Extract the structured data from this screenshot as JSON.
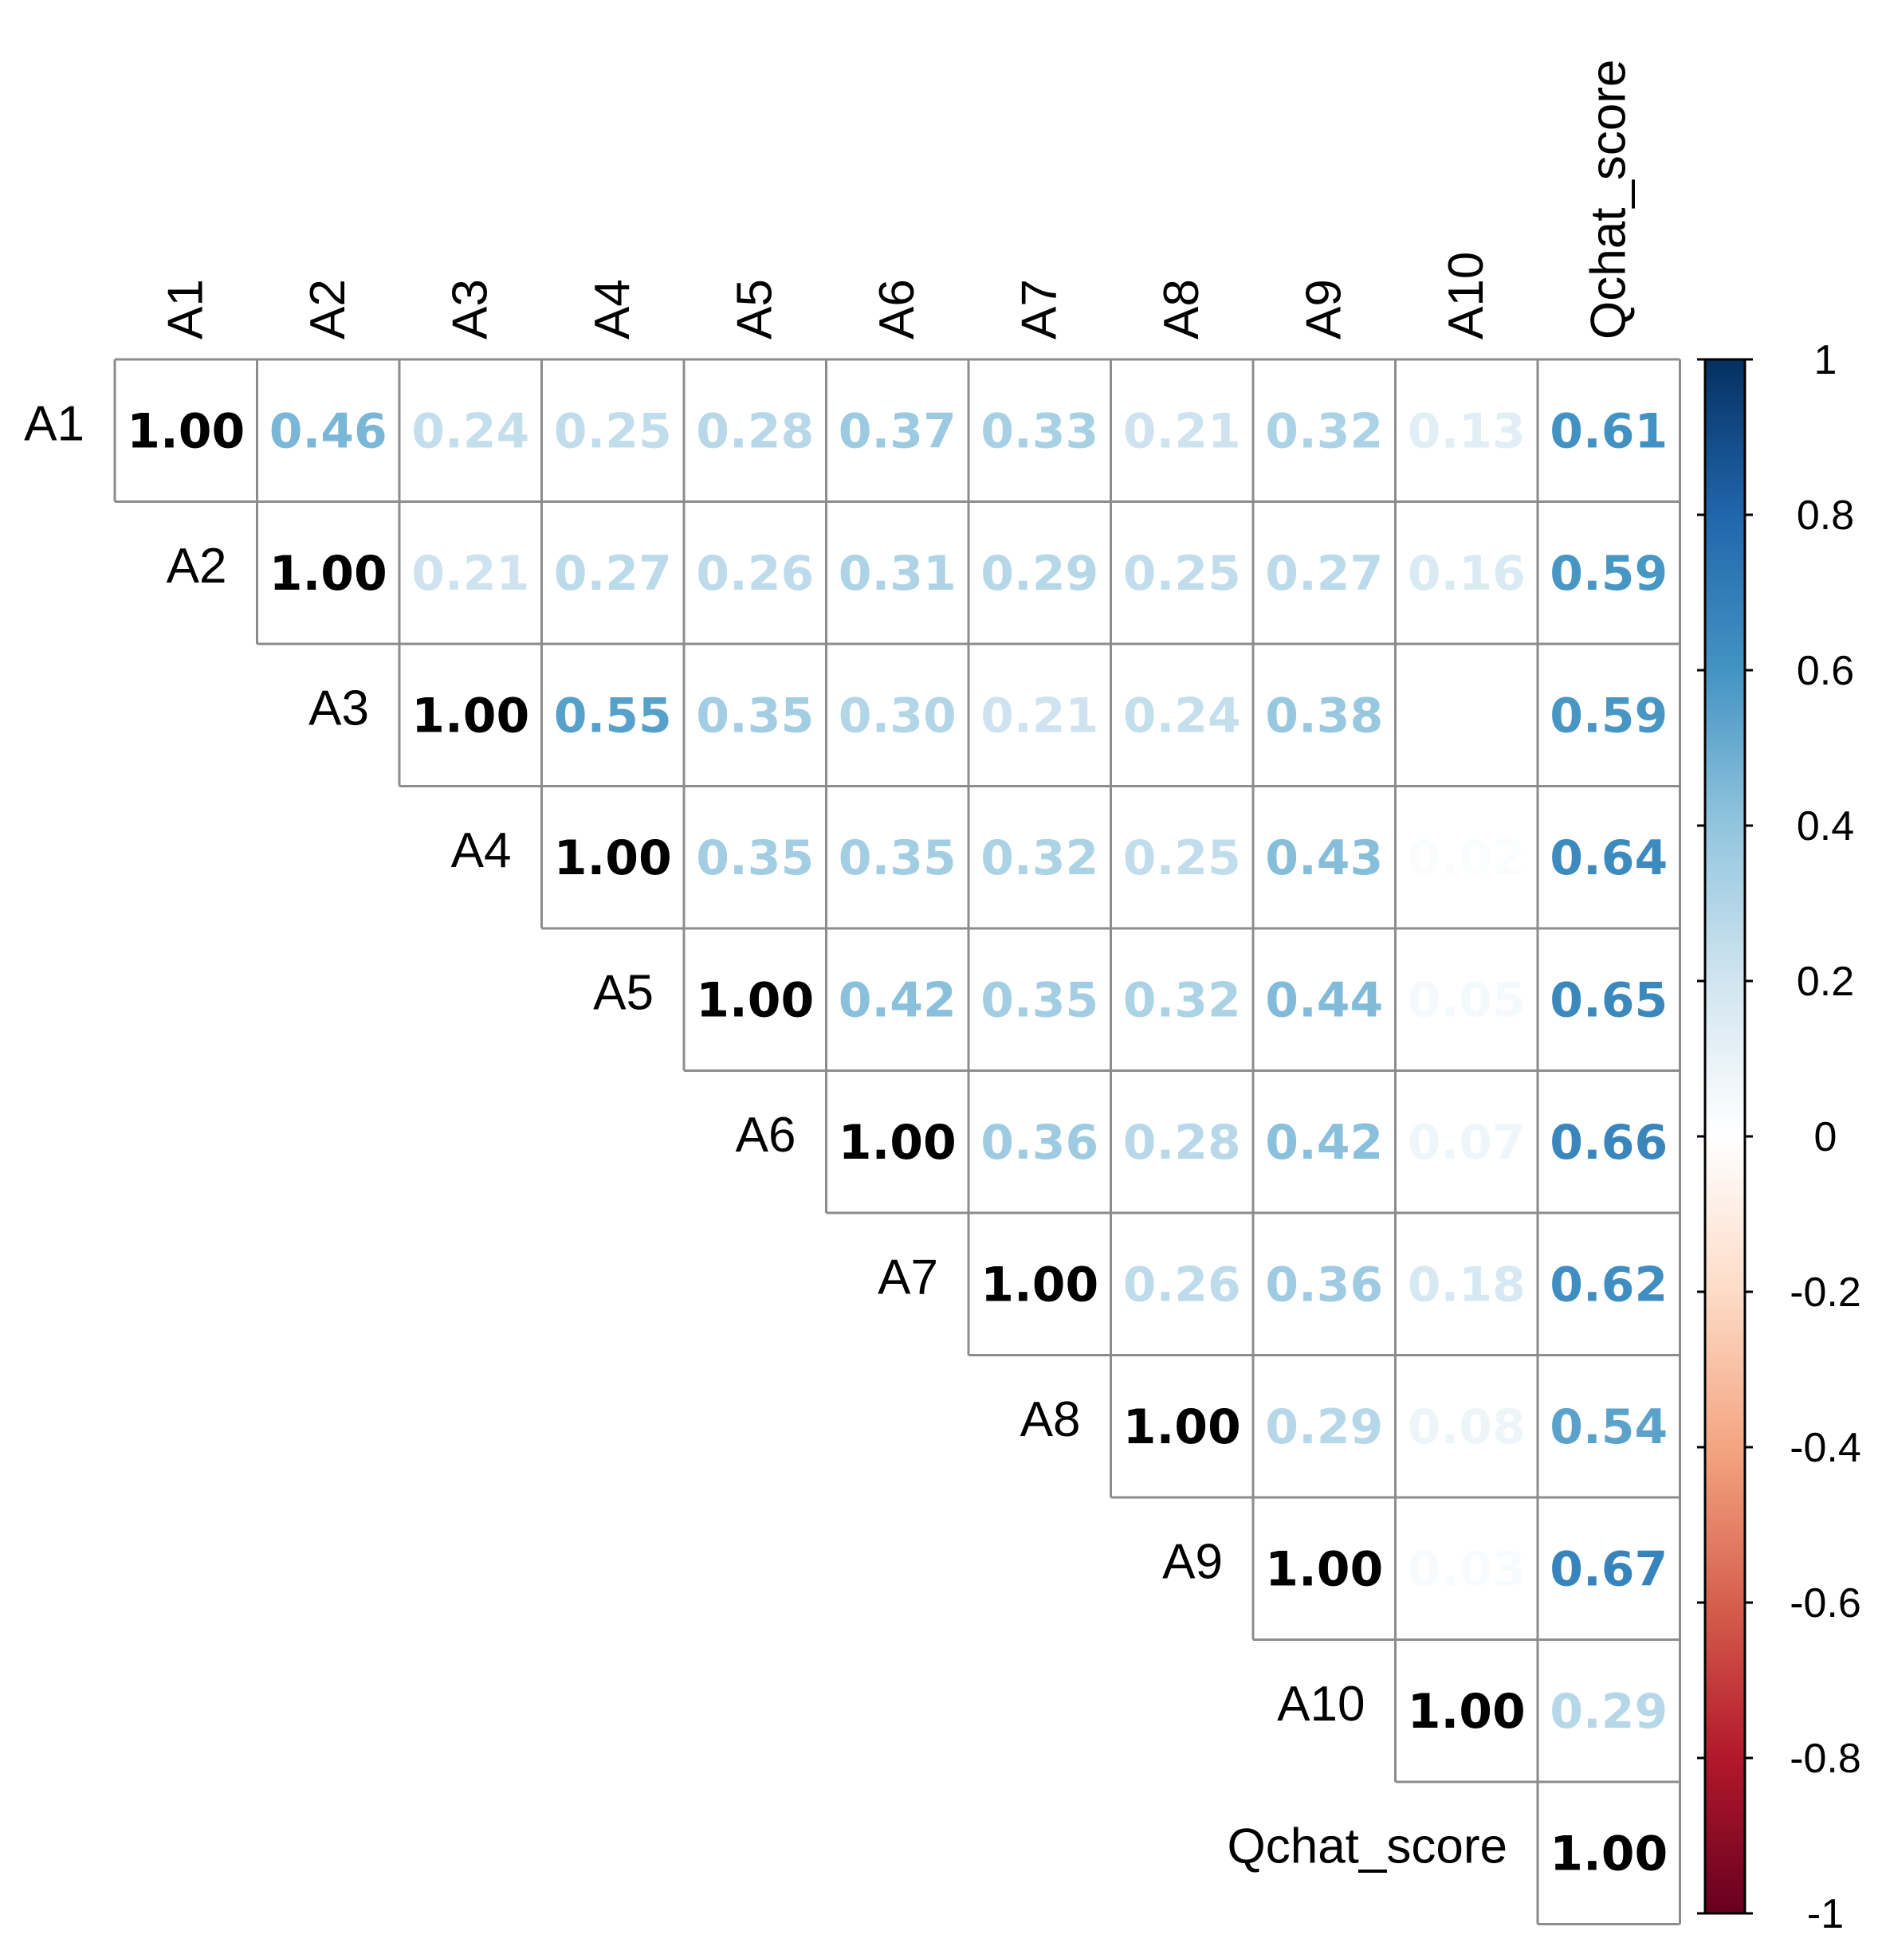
{
  "chart_data": {
    "type": "heatmap",
    "subtype": "correlation-upper-triangle",
    "variables": [
      "A1",
      "A2",
      "A3",
      "A4",
      "A5",
      "A6",
      "A7",
      "A8",
      "A9",
      "A10",
      "Qchat_score"
    ],
    "matrix": [
      [
        "1.00",
        "0.46",
        "0.24",
        "0.25",
        "0.28",
        "0.37",
        "0.33",
        "0.21",
        "0.32",
        "0.13",
        "0.61"
      ],
      [
        null,
        "1.00",
        "0.21",
        "0.27",
        "0.26",
        "0.31",
        "0.29",
        "0.25",
        "0.27",
        "0.16",
        "0.59"
      ],
      [
        null,
        null,
        "1.00",
        "0.55",
        "0.35",
        "0.30",
        "0.21",
        "0.24",
        "0.38",
        "0.00",
        "0.59"
      ],
      [
        null,
        null,
        null,
        "1.00",
        "0.35",
        "0.35",
        "0.32",
        "0.25",
        "0.43",
        "0.02",
        "0.64"
      ],
      [
        null,
        null,
        null,
        null,
        "1.00",
        "0.42",
        "0.35",
        "0.32",
        "0.44",
        "0.05",
        "0.65"
      ],
      [
        null,
        null,
        null,
        null,
        null,
        "1.00",
        "0.36",
        "0.28",
        "0.42",
        "0.07",
        "0.66"
      ],
      [
        null,
        null,
        null,
        null,
        null,
        null,
        "1.00",
        "0.26",
        "0.36",
        "0.18",
        "0.62"
      ],
      [
        null,
        null,
        null,
        null,
        null,
        null,
        null,
        "1.00",
        "0.29",
        "0.08",
        "0.54"
      ],
      [
        null,
        null,
        null,
        null,
        null,
        null,
        null,
        null,
        "1.00",
        "0.03",
        "0.67"
      ],
      [
        null,
        null,
        null,
        null,
        null,
        null,
        null,
        null,
        null,
        "1.00",
        "0.29"
      ],
      [
        null,
        null,
        null,
        null,
        null,
        null,
        null,
        null,
        null,
        null,
        "1.00"
      ]
    ],
    "colorbar": {
      "range": [
        -1,
        1
      ],
      "tick_labels": [
        "1",
        "0.8",
        "0.6",
        "0.4",
        "0.2",
        "0",
        "-0.2",
        "-0.4",
        "-0.6",
        "-0.8",
        "-1"
      ],
      "palette": [
        "#67001F",
        "#B2182B",
        "#D6604D",
        "#F4A582",
        "#FDDBC7",
        "#FFFFFF",
        "#D1E5F0",
        "#92C5DE",
        "#4393C3",
        "#2166AC",
        "#053061"
      ]
    },
    "diagonal_color": "#000000",
    "grid_color": "#8c8c8c"
  }
}
